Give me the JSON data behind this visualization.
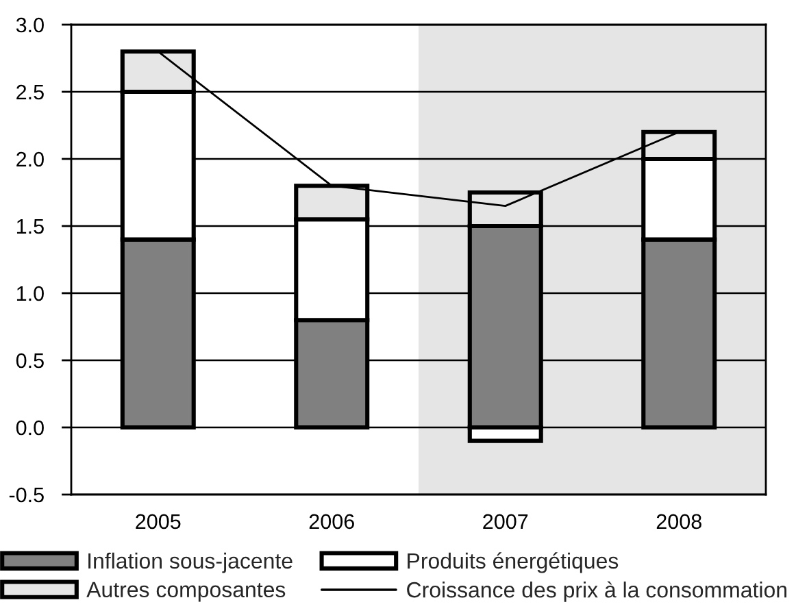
{
  "chart_data": {
    "type": "bar",
    "stacked": true,
    "categories": [
      "2005",
      "2006",
      "2007",
      "2008"
    ],
    "series": [
      {
        "name": "Inflation sous-jacente",
        "color": "#808080",
        "values": [
          1.4,
          0.8,
          1.5,
          1.4
        ]
      },
      {
        "name": "Produits énergétiques",
        "color": "#ffffff",
        "values": [
          1.1,
          0.75,
          -0.1,
          0.6
        ]
      },
      {
        "name": "Autres composantes",
        "color": "#e6e6e6",
        "values": [
          0.3,
          0.25,
          0.25,
          0.2
        ]
      },
      {
        "name": "Croissance des prix à la consommation",
        "type": "line",
        "color": "#000000",
        "values": [
          2.8,
          1.8,
          1.65,
          2.2
        ]
      }
    ],
    "ylim": [
      -0.5,
      3.0
    ],
    "yticks": [
      -0.5,
      {
        "value": 0,
        "label": "0.0"
      },
      0.5,
      {
        "value": 1,
        "label": "1.0"
      },
      1.5,
      {
        "value": 2,
        "label": "2.0"
      },
      2.5,
      {
        "value": 3,
        "label": "3.0"
      }
    ],
    "grid": "y",
    "legend": "bottom"
  }
}
